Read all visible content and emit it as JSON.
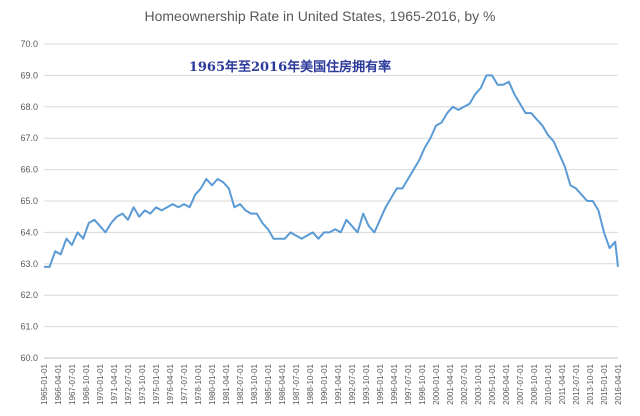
{
  "chart_data": {
    "type": "line",
    "title": "Homeownership Rate in United States, 1965-2016, by %",
    "subtitle": "1965年至2016年美国住房拥有率",
    "xlabel": "",
    "ylabel": "",
    "ylim": [
      60.0,
      70.0
    ],
    "y_ticks": [
      "60.0",
      "61.0",
      "62.0",
      "63.0",
      "64.0",
      "65.0",
      "66.0",
      "67.0",
      "68.0",
      "69.0",
      "70.0"
    ],
    "grid": true,
    "legend": "none",
    "line_color": "#5b9bd5",
    "x_ticks": [
      "1965-01-01",
      "1966-04-01",
      "1967-07-01",
      "1968-10-01",
      "1970-01-01",
      "1971-04-01",
      "1972-07-01",
      "1973-10-01",
      "1975-01-01",
      "1976-04-01",
      "1977-07-01",
      "1978-10-01",
      "1980-01-01",
      "1981-04-01",
      "1982-07-01",
      "1983-10-01",
      "1985-01-01",
      "1986-04-01",
      "1987-07-01",
      "1988-10-01",
      "1990-01-01",
      "1991-04-01",
      "1992-07-01",
      "1993-10-01",
      "1995-01-01",
      "1996-04-01",
      "1997-07-01",
      "1998-10-01",
      "2000-01-01",
      "2001-04-01",
      "2002-07-01",
      "2003-10-01",
      "2005-01-01",
      "2006-04-01",
      "2007-07-01",
      "2008-10-01",
      "2010-01-01",
      "2011-04-01",
      "2012-07-01",
      "2013-10-01",
      "2015-01-01",
      "2016-04-01"
    ],
    "series": [
      {
        "x": [
          "1965-01-01",
          "1965-07-01",
          "1966-01-01",
          "1966-07-01",
          "1967-01-01",
          "1967-07-01",
          "1968-01-01",
          "1968-07-01",
          "1969-01-01",
          "1969-07-01",
          "1970-01-01",
          "1970-07-01",
          "1971-01-01",
          "1971-07-01",
          "1972-01-01",
          "1972-07-01",
          "1973-01-01",
          "1973-07-01",
          "1974-01-01",
          "1974-07-01",
          "1975-01-01",
          "1975-07-01",
          "1976-01-01",
          "1976-07-01",
          "1977-01-01",
          "1977-07-01",
          "1978-01-01",
          "1978-07-01",
          "1979-01-01",
          "1979-07-01",
          "1980-01-01",
          "1980-07-01",
          "1981-01-01",
          "1981-07-01",
          "1982-01-01",
          "1982-07-01",
          "1983-01-01",
          "1983-07-01",
          "1984-01-01",
          "1984-07-01",
          "1985-01-01",
          "1985-07-01",
          "1986-01-01",
          "1986-07-01",
          "1987-01-01",
          "1987-07-01",
          "1988-01-01",
          "1988-07-01",
          "1989-01-01",
          "1989-07-01",
          "1990-01-01",
          "1990-07-01",
          "1991-01-01",
          "1991-07-01",
          "1992-01-01",
          "1992-07-01",
          "1993-01-01",
          "1993-07-01",
          "1994-01-01",
          "1994-07-01",
          "1995-01-01",
          "1995-07-01",
          "1996-01-01",
          "1996-07-01",
          "1997-01-01",
          "1997-07-01",
          "1998-01-01",
          "1998-07-01",
          "1999-01-01",
          "1999-07-01",
          "2000-01-01",
          "2000-07-01",
          "2001-01-01",
          "2001-07-01",
          "2002-01-01",
          "2002-07-01",
          "2003-01-01",
          "2003-07-01",
          "2004-01-01",
          "2004-07-01",
          "2005-01-01",
          "2005-07-01",
          "2006-01-01",
          "2006-07-01",
          "2007-01-01",
          "2007-07-01",
          "2008-01-01",
          "2008-07-01",
          "2009-01-01",
          "2009-07-01",
          "2010-01-01",
          "2010-07-01",
          "2011-01-01",
          "2011-07-01",
          "2012-01-01",
          "2012-07-01",
          "2013-01-01",
          "2013-07-01",
          "2014-01-01",
          "2014-07-01",
          "2015-01-01",
          "2015-07-01",
          "2016-01-01",
          "2016-04-01"
        ],
        "values": [
          62.9,
          62.9,
          63.4,
          63.3,
          63.8,
          63.6,
          64.0,
          63.8,
          64.3,
          64.4,
          64.2,
          64.0,
          64.3,
          64.5,
          64.6,
          64.4,
          64.8,
          64.5,
          64.7,
          64.6,
          64.8,
          64.7,
          64.8,
          64.9,
          64.8,
          64.9,
          64.8,
          65.2,
          65.4,
          65.7,
          65.5,
          65.7,
          65.6,
          65.4,
          64.8,
          64.9,
          64.7,
          64.6,
          64.6,
          64.3,
          64.1,
          63.8,
          63.8,
          63.8,
          64.0,
          63.9,
          63.8,
          63.9,
          64.0,
          63.8,
          64.0,
          64.0,
          64.1,
          64.0,
          64.4,
          64.2,
          64.0,
          64.6,
          64.2,
          64.0,
          64.4,
          64.8,
          65.1,
          65.4,
          65.4,
          65.7,
          66.0,
          66.3,
          66.7,
          67.0,
          67.4,
          67.5,
          67.8,
          68.0,
          67.9,
          68.0,
          68.1,
          68.4,
          68.6,
          69.0,
          69.0,
          68.7,
          68.7,
          68.8,
          68.4,
          68.1,
          67.8,
          67.8,
          67.6,
          67.4,
          67.1,
          66.9,
          66.5,
          66.1,
          65.5,
          65.4,
          65.2,
          65.0,
          65.0,
          64.7,
          64.0,
          63.5,
          63.7,
          62.9
        ]
      }
    ]
  }
}
